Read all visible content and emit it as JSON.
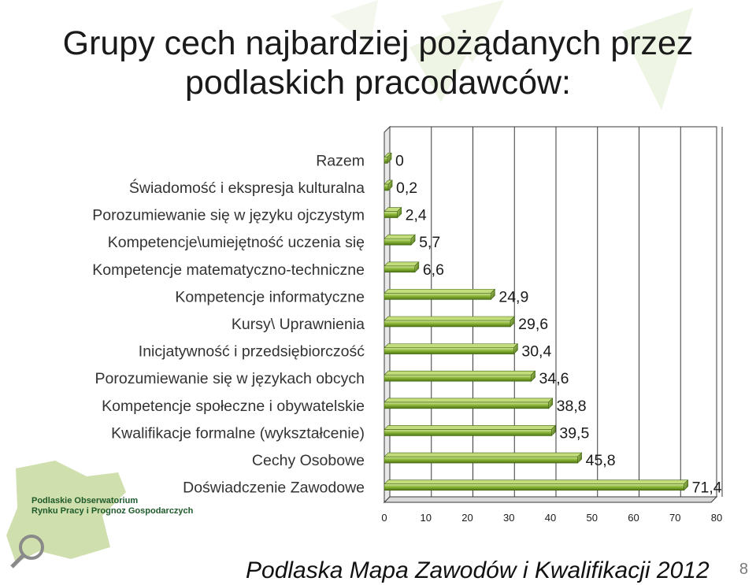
{
  "title": "Grupy cech najbardziej pożądanych przez podlaskich pracodawców:",
  "footer": "Podlaska Mapa Zawodów i Kwalifikacji 2012",
  "page_number": "8",
  "logo": {
    "line1": "Podlaskie Obserwatorium",
    "line2": "Rynku Pracy i Prognoz Gospodarczych"
  },
  "colors": {
    "bar_fill": "#7ea82e",
    "bar_light": "#c3dc7c",
    "bar_dark": "#4e7514",
    "grid": "#3a3a3a"
  },
  "chart_data": {
    "type": "bar",
    "orientation": "horizontal",
    "title": "",
    "xlabel": "",
    "ylabel": "",
    "xlim": [
      0,
      80
    ],
    "x_ticks": [
      "0",
      "10",
      "20",
      "30",
      "40",
      "50",
      "60",
      "70",
      "80"
    ],
    "grid": true,
    "categories": [
      "Razem",
      "Świadomość i ekspresja kulturalna",
      "Porozumiewanie się w języku ojczystym",
      "Kompetencje\\umiejętność uczenia się",
      "Kompetencje matematyczno-techniczne",
      "Kompetencje informatyczne",
      "Kursy\\ Uprawnienia",
      "Inicjatywność i przedsiębiorczość",
      "Porozumiewanie się w językach obcych",
      "Kompetencje społeczne i obywatelskie",
      "Kwalifikacje formalne (wykształcenie)",
      "Cechy Osobowe",
      "Doświadczenie Zawodowe"
    ],
    "values": [
      0,
      0.2,
      2.4,
      5.7,
      6.6,
      24.9,
      29.6,
      30.4,
      34.6,
      38.8,
      39.5,
      45.8,
      71.4
    ],
    "value_labels": [
      "0",
      "0,2",
      "2,4",
      "5,7",
      "6,6",
      "24,9",
      "29,6",
      "30,4",
      "34,6",
      "38,8",
      "39,5",
      "45,8",
      "71,4"
    ]
  }
}
